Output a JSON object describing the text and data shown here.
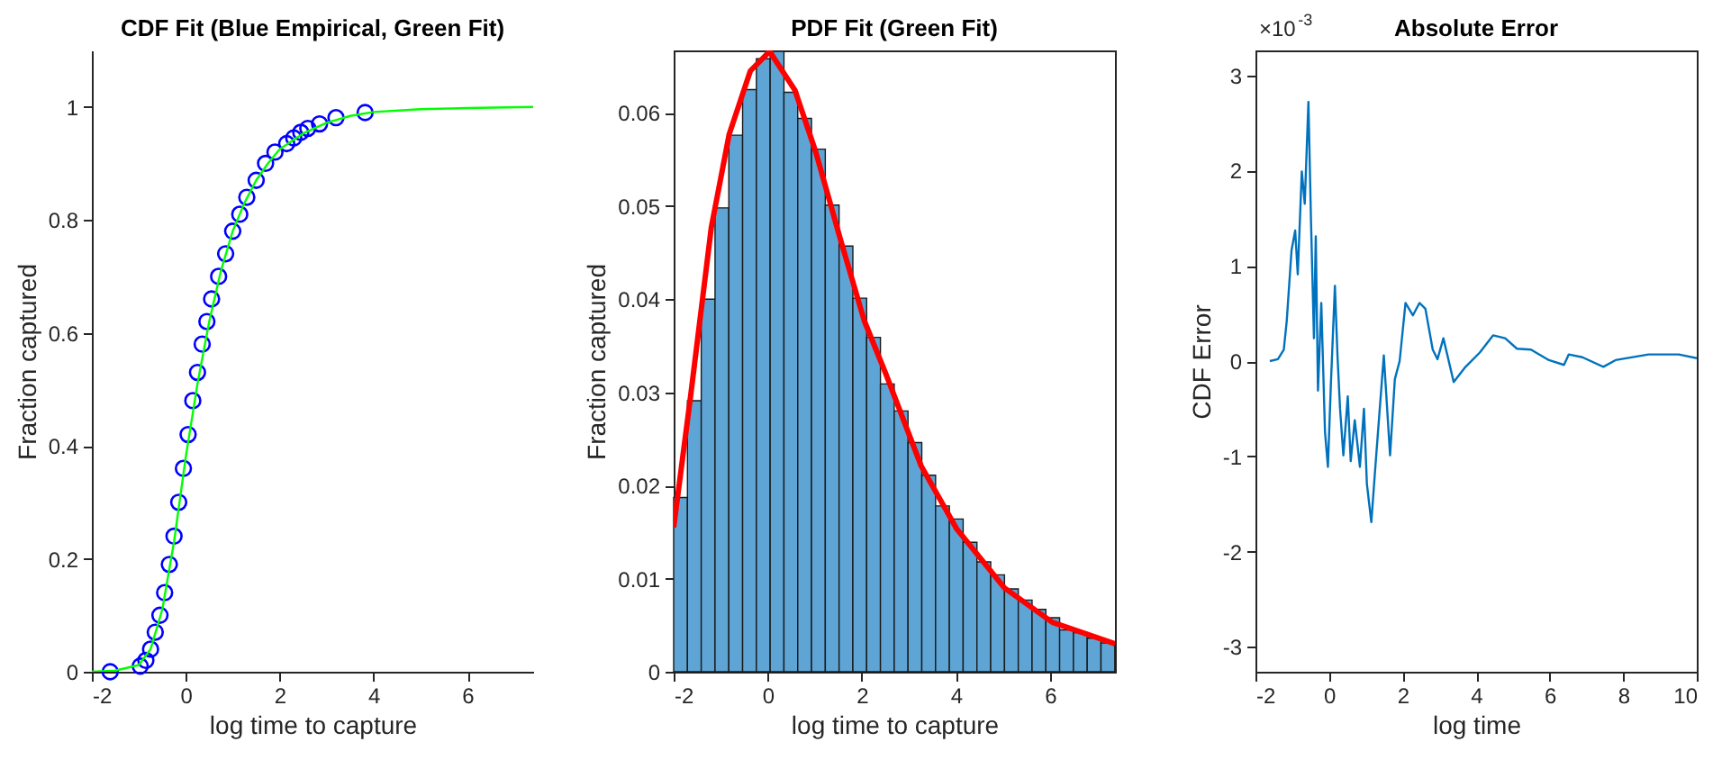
{
  "chart_data": [
    {
      "type": "line",
      "title": "CDF Fit (Blue Empirical, Green Fit)",
      "xlabel": "log time to capture",
      "ylabel": "Fraction captured",
      "xlim": [
        -2,
        7.4
      ],
      "xticks": [
        -2,
        0,
        2,
        4,
        6
      ],
      "ylim": [
        0,
        1.1
      ],
      "yticks": [
        0,
        0.2,
        0.4,
        0.6,
        0.8,
        1
      ],
      "grid": false,
      "series": [
        {
          "type": "scatter",
          "marker": "circle",
          "color": "#0000ff",
          "x": [
            -1.61,
            -0.97,
            -0.85,
            -0.75,
            -0.65,
            -0.55,
            -0.45,
            -0.35,
            -0.25,
            -0.15,
            -0.05,
            0.05,
            0.15,
            0.25,
            0.35,
            0.45,
            0.55,
            0.7,
            0.85,
            1.0,
            1.15,
            1.3,
            1.5,
            1.7,
            1.9,
            2.15,
            2.3,
            2.45,
            2.6,
            2.85,
            3.2,
            3.82
          ],
          "values": [
            0,
            0.01,
            0.02,
            0.04,
            0.07,
            0.1,
            0.14,
            0.19,
            0.24,
            0.3,
            0.36,
            0.42,
            0.48,
            0.53,
            0.58,
            0.62,
            0.66,
            0.7,
            0.74,
            0.78,
            0.81,
            0.84,
            0.87,
            0.9,
            0.92,
            0.935,
            0.945,
            0.955,
            0.962,
            0.97,
            0.981,
            0.99
          ]
        },
        {
          "type": "line",
          "color": "#00ff00",
          "x": [
            -2,
            -1.5,
            -1,
            -0.75,
            -0.5,
            -0.25,
            0,
            0.25,
            0.5,
            0.75,
            1,
            1.25,
            1.5,
            1.75,
            2,
            2.5,
            3,
            3.5,
            4,
            5,
            6,
            7.4
          ],
          "values": [
            0,
            0.002,
            0.012,
            0.04,
            0.11,
            0.23,
            0.38,
            0.51,
            0.62,
            0.71,
            0.78,
            0.83,
            0.87,
            0.9,
            0.925,
            0.953,
            0.972,
            0.984,
            0.991,
            0.996,
            0.998,
            1
          ]
        }
      ]
    },
    {
      "type": "histogram",
      "title": "PDF Fit (Green Fit)",
      "xlabel": "log time to capture",
      "ylabel": "Fraction captured",
      "xlim": [
        -2,
        7.38
      ],
      "xticks": [
        -2,
        0,
        2,
        4,
        6
      ],
      "ylim": [
        0,
        0.0667
      ],
      "yticks": [
        0,
        0.01,
        0.02,
        0.03,
        0.04,
        0.05,
        0.06
      ],
      "grid": false,
      "color": "#5ea5d6",
      "bins": [
        -2,
        -1.707,
        -1.414,
        -1.121,
        -0.828,
        -0.535,
        -0.242,
        0.051,
        0.344,
        0.637,
        0.93,
        1.223,
        1.516,
        1.809,
        2.102,
        2.395,
        2.688,
        2.981,
        3.274,
        3.567,
        3.86,
        4.153,
        4.446,
        4.739,
        5.032,
        5.325,
        5.618,
        5.911,
        6.204,
        6.497,
        6.79,
        7.083,
        7.376
      ],
      "values": [
        0.0187,
        0.0291,
        0.04,
        0.0498,
        0.0576,
        0.0625,
        0.0658,
        0.0666,
        0.0622,
        0.0594,
        0.0561,
        0.0501,
        0.0457,
        0.0401,
        0.0359,
        0.0309,
        0.028,
        0.0246,
        0.0211,
        0.0178,
        0.0164,
        0.0139,
        0.0118,
        0.0104,
        0.0089,
        0.0077,
        0.0067,
        0.0058,
        0.0045,
        0.0042,
        0.0036,
        0.0031
      ],
      "series": [
        {
          "type": "line",
          "color": "#ff0000",
          "x": [
            -2,
            -1.64,
            -1.2,
            -0.82,
            -0.37,
            0.04,
            0.58,
            1.02,
            1.54,
            2.05,
            2.5,
            3.26,
            4.02,
            5.03,
            6.05,
            7.38
          ],
          "values": [
            0.0155,
            0.0296,
            0.0477,
            0.0577,
            0.0645,
            0.0666,
            0.0624,
            0.0558,
            0.0465,
            0.0377,
            0.0321,
            0.0221,
            0.0153,
            0.009,
            0.0053,
            0.003
          ]
        }
      ]
    },
    {
      "type": "line",
      "title": "Absolute Error",
      "xlabel": "log time",
      "ylabel": "CDF Error",
      "xlim": [
        -2,
        10
      ],
      "xticks": [
        -2,
        0,
        2,
        4,
        6,
        8,
        10
      ],
      "ylim": [
        -3.26,
        3.26
      ],
      "yticks": [
        -3,
        -2,
        -1,
        0,
        1,
        2,
        3
      ],
      "grid": false,
      "annotations": [
        "×10$^{-3}$"
      ],
      "series": [
        {
          "type": "line",
          "color": "#0072bd",
          "x": [
            -1.61,
            -1.39,
            -1.23,
            -1.15,
            -1.02,
            -0.92,
            -0.85,
            -0.74,
            -0.66,
            -0.56,
            -0.49,
            -0.41,
            -0.36,
            -0.3,
            -0.21,
            -0.11,
            -0.03,
            0.05,
            0.16,
            0.23,
            0.3,
            0.39,
            0.51,
            0.59,
            0.7,
            0.84,
            0.95,
            1.03,
            1.15,
            1.26,
            1.49,
            1.66,
            1.79,
            1.92,
            2.08,
            2.28,
            2.46,
            2.62,
            2.82,
            2.95,
            3.11,
            3.39,
            3.69,
            4.1,
            4.46,
            4.79,
            5.11,
            5.49,
            5.98,
            6.39,
            6.52,
            6.89,
            7.46,
            7.79,
            8.69,
            9.51,
            10
          ],
          "values": [
            0,
            0.02,
            0.12,
            0.42,
            1.16,
            1.37,
            0.91,
            1.99,
            1.65,
            2.72,
            1.47,
            0.24,
            1.31,
            -0.31,
            0.61,
            -0.74,
            -1.11,
            -0.25,
            0.79,
            0.06,
            -0.5,
            -0.99,
            -0.37,
            -1.05,
            -0.62,
            -1.11,
            -0.5,
            -1.29,
            -1.69,
            -1.11,
            0.06,
            -0.99,
            -0.19,
            0,
            0.61,
            0.48,
            0.61,
            0.55,
            0.12,
            0.02,
            0.24,
            -0.22,
            -0.07,
            0.09,
            0.27,
            0.24,
            0.13,
            0.12,
            0.01,
            -0.04,
            0.07,
            0.04,
            -0.06,
            0.01,
            0.07,
            0.07,
            0.03
          ]
        }
      ]
    }
  ]
}
